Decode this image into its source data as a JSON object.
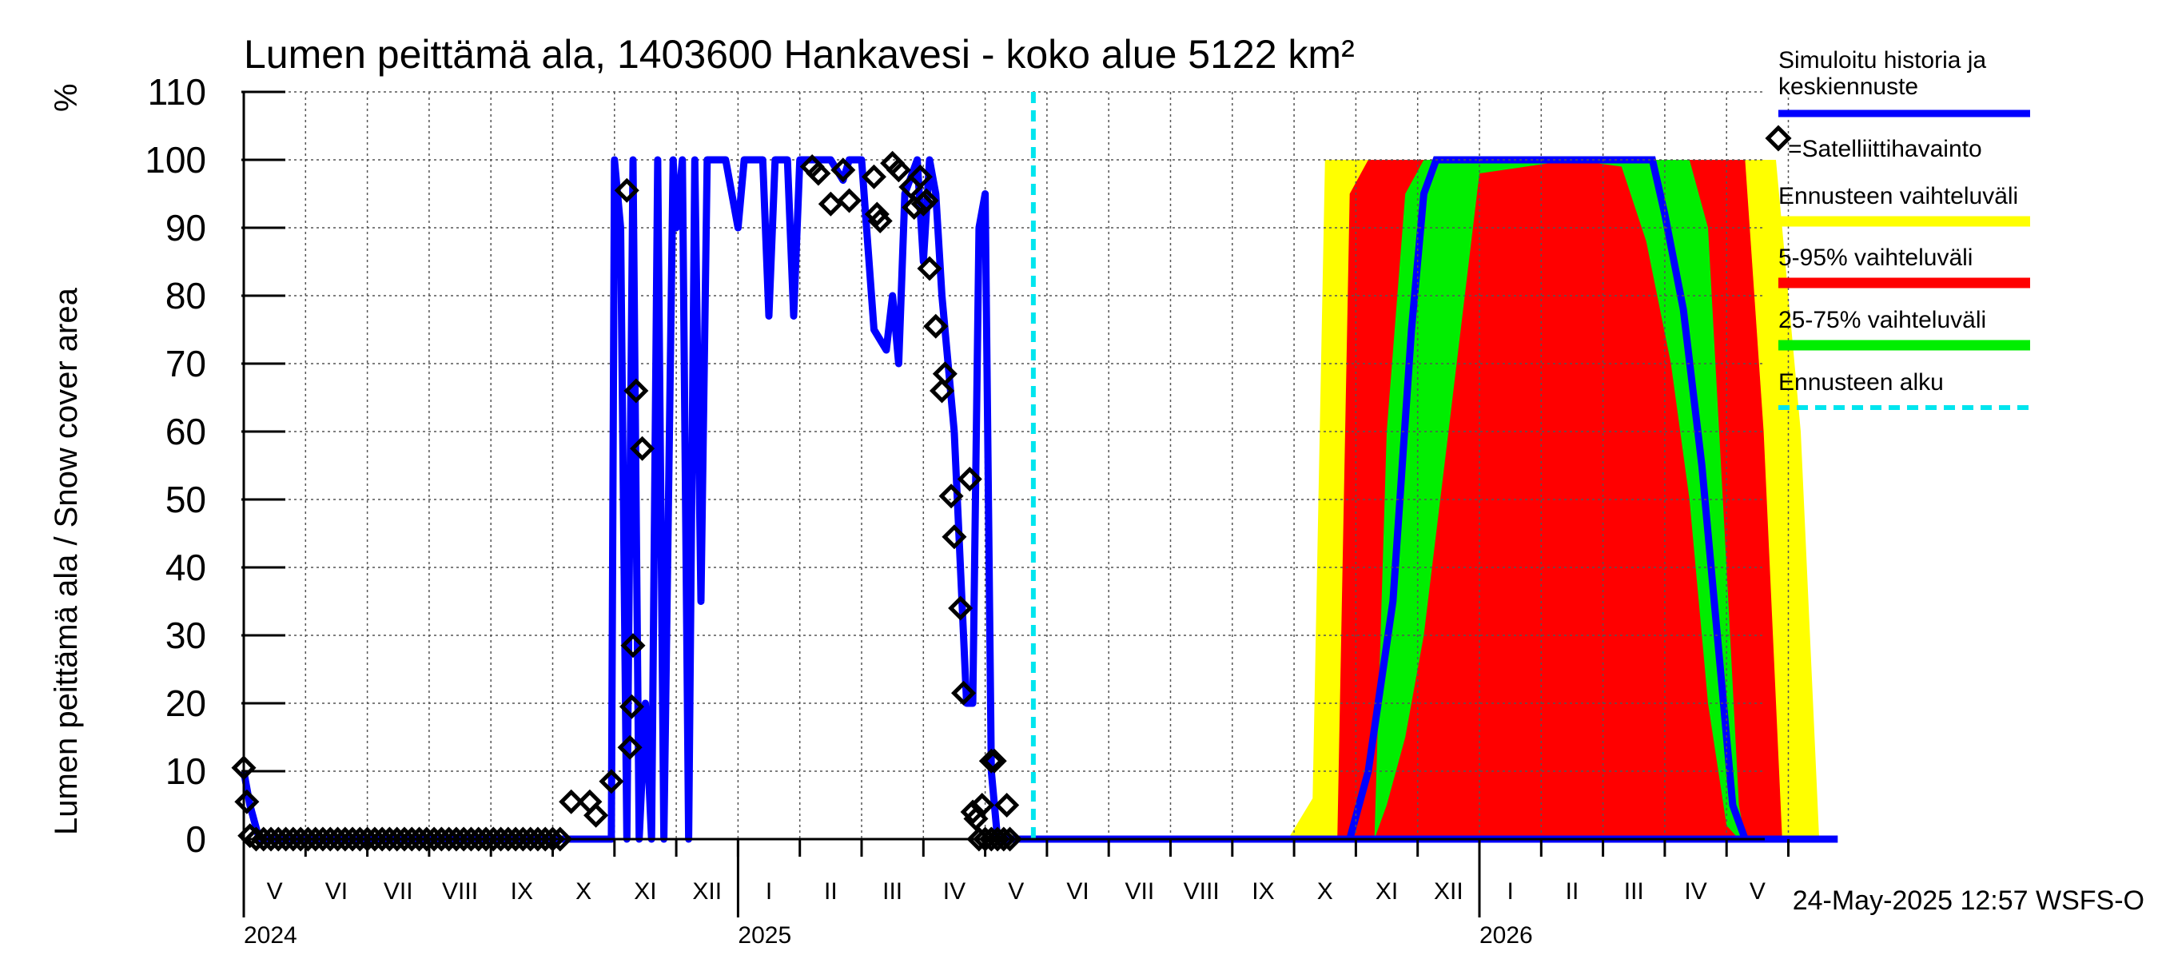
{
  "chart_data": {
    "type": "line",
    "title": "Lumen peittämä ala, 1403600 Hankavesi - koko alue 5122 km²",
    "ylabel": "Lumen peittämä ala / Snow cover area",
    "yunit": "%",
    "ylim": [
      0,
      110
    ],
    "yticks": [
      0,
      10,
      20,
      30,
      40,
      50,
      60,
      70,
      80,
      90,
      100,
      110
    ],
    "xlim_months": [
      0,
      25.8
    ],
    "month_labels": [
      {
        "label": "V",
        "m": 0.5
      },
      {
        "label": "VI",
        "m": 1.5
      },
      {
        "label": "VII",
        "m": 2.5
      },
      {
        "label": "VIII",
        "m": 3.5
      },
      {
        "label": "IX",
        "m": 4.5
      },
      {
        "label": "X",
        "m": 5.5
      },
      {
        "label": "XI",
        "m": 6.5
      },
      {
        "label": "XII",
        "m": 7.5
      },
      {
        "label": "I",
        "m": 8.5
      },
      {
        "label": "II",
        "m": 9.5
      },
      {
        "label": "III",
        "m": 10.5
      },
      {
        "label": "IV",
        "m": 11.5
      },
      {
        "label": "V",
        "m": 12.5
      },
      {
        "label": "VI",
        "m": 13.5
      },
      {
        "label": "VII",
        "m": 14.5
      },
      {
        "label": "VIII",
        "m": 15.5
      },
      {
        "label": "IX",
        "m": 16.5
      },
      {
        "label": "X",
        "m": 17.5
      },
      {
        "label": "XI",
        "m": 18.5
      },
      {
        "label": "XII",
        "m": 19.5
      },
      {
        "label": "I",
        "m": 20.5
      },
      {
        "label": "II",
        "m": 21.5
      },
      {
        "label": "III",
        "m": 22.5
      },
      {
        "label": "IV",
        "m": 23.5
      },
      {
        "label": "V",
        "m": 24.5
      }
    ],
    "year_labels": [
      {
        "label": "2024",
        "m": 0
      },
      {
        "label": "2025",
        "m": 8
      },
      {
        "label": "2026",
        "m": 20
      }
    ],
    "year_boundaries_m": [
      8,
      20
    ],
    "forecast_start_m": 12.78,
    "legend": {
      "sim": "Simuloitu historia ja keskiennuste",
      "obs": "=Satelliittihavainto",
      "range": "Ennusteen vaihteluväli",
      "p5_95": "5-95% vaihteluväli",
      "p25_75": "25-75% vaihteluväli",
      "start": "Ennusteen alku"
    },
    "colors": {
      "sim": "#0000ff",
      "range": "#ffff00",
      "p5_95": "#ff0000",
      "p25_75": "#00ee00",
      "start": "#00e5ee",
      "obs": "#000000"
    },
    "series": [
      {
        "name": "Simuloitu historia ja keskiennuste",
        "points": [
          [
            0,
            10
          ],
          [
            0.1,
            5
          ],
          [
            0.25,
            0
          ],
          [
            5.95,
            0
          ],
          [
            6.0,
            100
          ],
          [
            6.1,
            90
          ],
          [
            6.2,
            0
          ],
          [
            6.3,
            100
          ],
          [
            6.4,
            0
          ],
          [
            6.5,
            20
          ],
          [
            6.6,
            0
          ],
          [
            6.7,
            100
          ],
          [
            6.8,
            0
          ],
          [
            6.95,
            100
          ],
          [
            7.0,
            90
          ],
          [
            7.1,
            100
          ],
          [
            7.2,
            0
          ],
          [
            7.3,
            100
          ],
          [
            7.4,
            35
          ],
          [
            7.5,
            100
          ],
          [
            7.7,
            100
          ],
          [
            7.8,
            100
          ],
          [
            8.0,
            90
          ],
          [
            8.1,
            100
          ],
          [
            8.2,
            100
          ],
          [
            8.4,
            100
          ],
          [
            8.5,
            77
          ],
          [
            8.6,
            100
          ],
          [
            8.8,
            100
          ],
          [
            8.9,
            77
          ],
          [
            9.0,
            100
          ],
          [
            9.3,
            100
          ],
          [
            9.5,
            100
          ],
          [
            9.7,
            97
          ],
          [
            9.8,
            100
          ],
          [
            10.0,
            100
          ],
          [
            10.2,
            75
          ],
          [
            10.4,
            72
          ],
          [
            10.5,
            80
          ],
          [
            10.6,
            70
          ],
          [
            10.7,
            95
          ],
          [
            10.9,
            100
          ],
          [
            11.0,
            85
          ],
          [
            11.1,
            100
          ],
          [
            11.2,
            95
          ],
          [
            11.3,
            80
          ],
          [
            11.5,
            60
          ],
          [
            11.7,
            20
          ],
          [
            11.8,
            20
          ],
          [
            11.9,
            90
          ],
          [
            12.0,
            95
          ],
          [
            12.1,
            10
          ],
          [
            12.2,
            0
          ],
          [
            25.8,
            0
          ]
        ]
      },
      {
        "name": "Satelliittihavainto",
        "points": [
          [
            0.0,
            10.5
          ],
          [
            0.05,
            5.5
          ],
          [
            0.1,
            0.5
          ],
          [
            5.3,
            5.5
          ],
          [
            5.6,
            5.5
          ],
          [
            5.7,
            3.5
          ],
          [
            5.95,
            8.5
          ],
          [
            6.2,
            95.5
          ],
          [
            6.3,
            28.5
          ],
          [
            6.25,
            13.5
          ],
          [
            6.28,
            19.5
          ],
          [
            6.35,
            66
          ],
          [
            6.45,
            57.5
          ],
          [
            9.2,
            99
          ],
          [
            9.3,
            98
          ],
          [
            9.5,
            93.5
          ],
          [
            9.7,
            98.5
          ],
          [
            9.8,
            94
          ],
          [
            10.2,
            97.5
          ],
          [
            10.25,
            92
          ],
          [
            10.3,
            91
          ],
          [
            10.5,
            99.5
          ],
          [
            10.6,
            98.5
          ],
          [
            10.8,
            96
          ],
          [
            10.85,
            93
          ],
          [
            10.95,
            97.5
          ],
          [
            11.0,
            93.5
          ],
          [
            11.05,
            94
          ],
          [
            11.1,
            84
          ],
          [
            11.2,
            75.5
          ],
          [
            11.3,
            66
          ],
          [
            11.35,
            68.5
          ],
          [
            11.45,
            50.5
          ],
          [
            11.5,
            44.5
          ],
          [
            11.6,
            34
          ],
          [
            11.65,
            21.5
          ],
          [
            11.75,
            53
          ],
          [
            11.8,
            4
          ],
          [
            11.85,
            3
          ],
          [
            11.95,
            5
          ],
          [
            12.1,
            11.5
          ],
          [
            12.15,
            11.5
          ],
          [
            12.35,
            5
          ]
        ]
      }
    ]
  },
  "timestamp": "24-May-2025 12:57 WSFS-O"
}
